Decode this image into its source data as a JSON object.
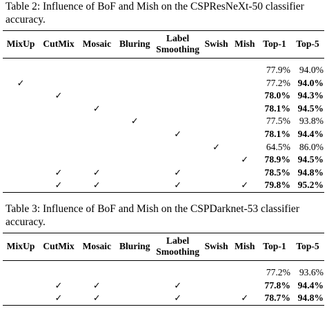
{
  "tables": [
    {
      "caption": "Table 2: Influence of BoF and Mish on the CSPResNeXt-50 classifier accuracy.",
      "headers": [
        "MixUp",
        "CutMix",
        "Mosaic",
        "Bluring",
        "Label Smoothing",
        "Swish",
        "Mish",
        "Top-1",
        "Top-5"
      ],
      "rows": [
        {
          "cells": [
            null,
            null,
            null,
            null,
            null,
            null,
            null,
            "77.9%",
            "94.0%"
          ],
          "bold": []
        },
        {
          "cells": [
            "✓",
            null,
            null,
            null,
            null,
            null,
            null,
            "77.2%",
            "94.0%"
          ],
          "bold": [
            8
          ]
        },
        {
          "cells": [
            null,
            "✓",
            null,
            null,
            null,
            null,
            null,
            "78.0%",
            "94.3%"
          ],
          "bold": [
            7,
            8
          ]
        },
        {
          "cells": [
            null,
            null,
            "✓",
            null,
            null,
            null,
            null,
            "78.1%",
            "94.5%"
          ],
          "bold": [
            7,
            8
          ]
        },
        {
          "cells": [
            null,
            null,
            null,
            "✓",
            null,
            null,
            null,
            "77.5%",
            "93.8%"
          ],
          "bold": []
        },
        {
          "cells": [
            null,
            null,
            null,
            null,
            "✓",
            null,
            null,
            "78.1%",
            "94.4%"
          ],
          "bold": [
            7,
            8
          ]
        },
        {
          "cells": [
            null,
            null,
            null,
            null,
            null,
            "✓",
            null,
            "64.5%",
            "86.0%"
          ],
          "bold": []
        },
        {
          "cells": [
            null,
            null,
            null,
            null,
            null,
            null,
            "✓",
            "78.9%",
            "94.5%"
          ],
          "bold": [
            7,
            8
          ]
        },
        {
          "cells": [
            null,
            "✓",
            "✓",
            null,
            "✓",
            null,
            null,
            "78.5%",
            "94.8%"
          ],
          "bold": [
            7,
            8
          ]
        },
        {
          "cells": [
            null,
            "✓",
            "✓",
            null,
            "✓",
            null,
            "✓",
            "79.8%",
            "95.2%"
          ],
          "bold": [
            7,
            8
          ]
        }
      ]
    },
    {
      "caption": "Table 3: Influence of BoF and Mish on the CSPDarknet-53 classifier accuracy.",
      "headers": [
        "MixUp",
        "CutMix",
        "Mosaic",
        "Bluring",
        "Label Smoothing",
        "Swish",
        "Mish",
        "Top-1",
        "Top-5"
      ],
      "rows": [
        {
          "cells": [
            null,
            null,
            null,
            null,
            null,
            null,
            null,
            "77.2%",
            "93.6%"
          ],
          "bold": []
        },
        {
          "cells": [
            null,
            "✓",
            "✓",
            null,
            "✓",
            null,
            null,
            "77.8%",
            "94.4%"
          ],
          "bold": [
            7,
            8
          ]
        },
        {
          "cells": [
            null,
            "✓",
            "✓",
            null,
            "✓",
            null,
            "✓",
            "78.7%",
            "94.8%"
          ],
          "bold": [
            7,
            8
          ]
        }
      ]
    }
  ]
}
